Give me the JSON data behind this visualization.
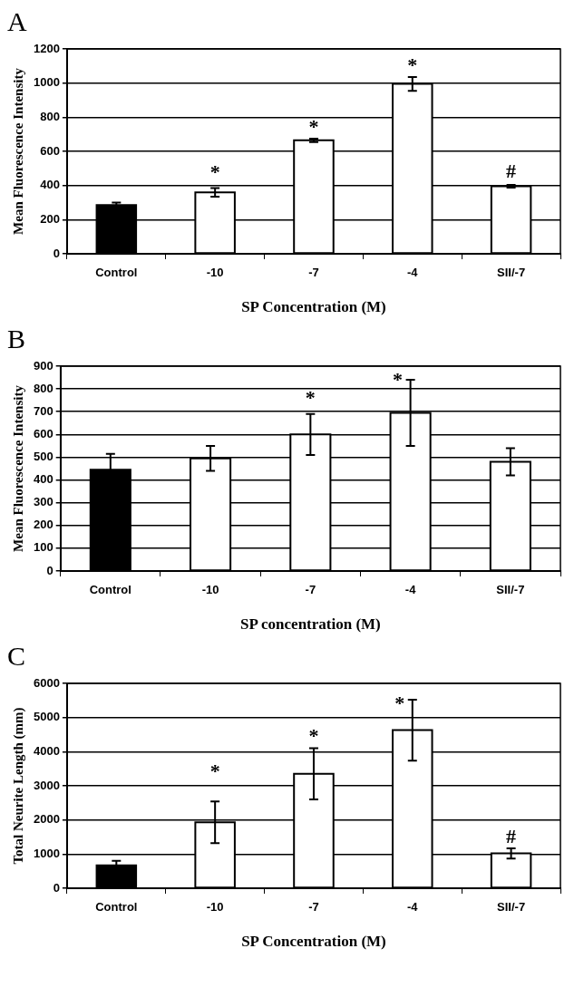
{
  "chart_data": [
    {
      "type": "bar",
      "title": "A",
      "xlabel": "SP Concentration (M)",
      "ylabel": "Mean Fluorescence Intensity",
      "categories": [
        "Control",
        "-10",
        "-7",
        "-4",
        "SII/-7"
      ],
      "values": [
        285,
        360,
        665,
        995,
        395
      ],
      "errors": [
        15,
        25,
        10,
        40,
        8
      ],
      "colors": [
        "#000000",
        "#ffffff",
        "#ffffff",
        "#ffffff",
        "#ffffff"
      ],
      "ylim": [
        0,
        1200
      ],
      "yticks": [
        0,
        200,
        400,
        600,
        800,
        1000,
        1200
      ],
      "grid": "y",
      "annotations": [
        {
          "text": "*",
          "x": "-10",
          "y": 360
        },
        {
          "text": "*",
          "x": "-7",
          "y": 665
        },
        {
          "text": "*",
          "x": "-4",
          "y": 995
        },
        {
          "text": "#",
          "x": "SII/-7",
          "y": 395
        }
      ]
    },
    {
      "type": "bar",
      "title": "B",
      "xlabel": "SP concentration (M)",
      "ylabel": "Mean Fluorescence Intensity",
      "categories": [
        "Control",
        "-10",
        "-7",
        "-4",
        "SII/-7"
      ],
      "values": [
        445,
        495,
        600,
        695,
        480
      ],
      "errors": [
        70,
        55,
        90,
        145,
        60
      ],
      "colors": [
        "#000000",
        "#ffffff",
        "#ffffff",
        "#ffffff",
        "#ffffff"
      ],
      "ylim": [
        0,
        900
      ],
      "yticks": [
        0,
        100,
        200,
        300,
        400,
        500,
        600,
        700,
        800,
        900
      ],
      "grid": "y",
      "annotations": [
        {
          "text": "*",
          "x": "-7",
          "y": 600
        },
        {
          "text": "*",
          "x": "-4",
          "y": 695
        }
      ]
    },
    {
      "type": "bar",
      "title": "C",
      "xlabel": "SP Concentration (M)",
      "ylabel": "Total Neurite Length (mm)",
      "categories": [
        "Control",
        "-10",
        "-7",
        "-4",
        "SII/-7"
      ],
      "values": [
        670,
        1930,
        3350,
        4630,
        1020
      ],
      "errors": [
        130,
        610,
        750,
        890,
        150
      ],
      "colors": [
        "#000000",
        "#ffffff",
        "#ffffff",
        "#ffffff",
        "#ffffff"
      ],
      "ylim": [
        0,
        6000
      ],
      "yticks": [
        0,
        1000,
        2000,
        3000,
        4000,
        5000,
        6000
      ],
      "grid": "y",
      "annotations": [
        {
          "text": "*",
          "x": "-10",
          "y": 1930
        },
        {
          "text": "*",
          "x": "-7",
          "y": 3350
        },
        {
          "text": "*",
          "x": "-4",
          "y": 4630
        },
        {
          "text": "#",
          "x": "SII/-7",
          "y": 1020
        }
      ]
    }
  ]
}
